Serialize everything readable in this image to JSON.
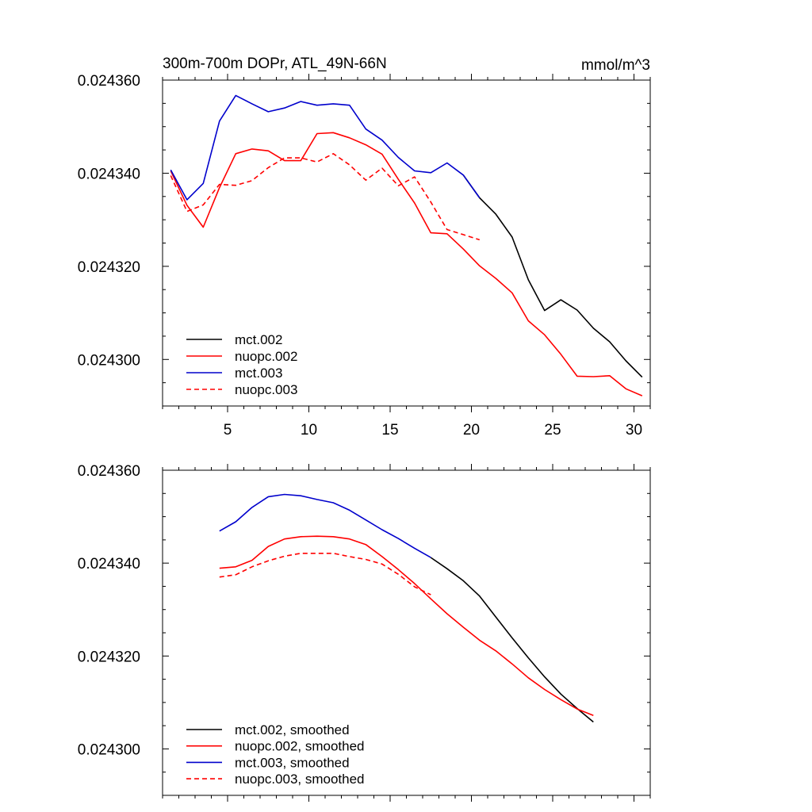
{
  "colors": {
    "mct_002": "#000000",
    "nuopc_002": "#ff0000",
    "mct_003": "#0000cc",
    "nuopc_003": "#ff0000"
  },
  "chart_data": [
    {
      "type": "line",
      "title_left": "300m-700m DOPr, ATL_49N-66N",
      "title_right": "mmol/m^3",
      "xlabel": "",
      "ylabel": "",
      "xlim": [
        1,
        31
      ],
      "ylim": [
        0.02429,
        0.02436
      ],
      "xticks": [
        5,
        10,
        15,
        20,
        25,
        30
      ],
      "xtick_labels": [
        "5",
        "10",
        "15",
        "20",
        "25",
        "30"
      ],
      "yticks": [
        0.0243,
        0.02432,
        0.02434,
        0.02436
      ],
      "ytick_labels": [
        "0.024300",
        "0.024320",
        "0.024340",
        "0.024360"
      ],
      "legend_position": "bottom-left",
      "series": [
        {
          "name": "mct.002",
          "color": "#000000",
          "dash": "solid",
          "x": [
            19.5,
            20.5,
            21.5,
            22.5,
            23.5,
            24.5,
            25.5,
            26.5,
            27.5,
            28.5,
            29.5,
            30.5
          ],
          "y": [
            0.0243396,
            0.0243347,
            0.0243312,
            0.0243263,
            0.0243171,
            0.0243105,
            0.0243128,
            0.0243106,
            0.0243067,
            0.0243038,
            0.0242997,
            0.0242962
          ]
        },
        {
          "name": "nuopc.002",
          "color": "#ff0000",
          "dash": "solid",
          "x": [
            1.5,
            2.5,
            3.5,
            4.5,
            5.5,
            6.5,
            7.5,
            8.5,
            9.5,
            10.5,
            11.5,
            12.5,
            13.5,
            14.5,
            15.5,
            16.5,
            17.5,
            18.5,
            19.5,
            20.5,
            21.5,
            22.5,
            23.5,
            24.5,
            25.5,
            26.5,
            27.5,
            28.5,
            29.5,
            30.5
          ],
          "y": [
            0.0243405,
            0.0243331,
            0.0243284,
            0.0243369,
            0.0243442,
            0.0243452,
            0.0243448,
            0.0243427,
            0.0243427,
            0.0243485,
            0.0243487,
            0.0243476,
            0.0243461,
            0.0243441,
            0.0243387,
            0.0243336,
            0.0243272,
            0.024327,
            0.0243237,
            0.0243201,
            0.0243174,
            0.0243143,
            0.0243083,
            0.0243053,
            0.0243011,
            0.0242964,
            0.0242963,
            0.0242965,
            0.0242937,
            0.0242922
          ]
        },
        {
          "name": "mct.003",
          "color": "#0000cc",
          "dash": "solid",
          "x": [
            1.5,
            2.5,
            3.5,
            4.5,
            5.5,
            6.5,
            7.5,
            8.5,
            9.5,
            10.5,
            11.5,
            12.5,
            13.5,
            14.5,
            15.5,
            16.5,
            17.5,
            18.5,
            19.5,
            20.5
          ],
          "y": [
            0.0243407,
            0.0243343,
            0.0243378,
            0.0243512,
            0.0243567,
            0.0243549,
            0.0243532,
            0.024354,
            0.0243554,
            0.0243546,
            0.0243549,
            0.0243546,
            0.0243495,
            0.0243471,
            0.0243434,
            0.0243405,
            0.0243401,
            0.0243422,
            0.0243396,
            0.0243347
          ]
        },
        {
          "name": "nuopc.003",
          "color": "#ff0000",
          "dash": "dashed",
          "x": [
            1.5,
            2.5,
            3.5,
            4.5,
            5.5,
            6.5,
            7.5,
            8.5,
            9.5,
            10.5,
            11.5,
            12.5,
            13.5,
            14.5,
            15.5,
            16.5,
            17.5,
            18.5,
            19.5,
            20.5
          ],
          "y": [
            0.0243395,
            0.0243318,
            0.0243332,
            0.0243376,
            0.0243374,
            0.0243384,
            0.0243412,
            0.0243433,
            0.0243433,
            0.0243424,
            0.0243442,
            0.0243418,
            0.0243385,
            0.0243411,
            0.0243373,
            0.0243392,
            0.0243338,
            0.0243279,
            0.0243268,
            0.0243257
          ]
        }
      ]
    },
    {
      "type": "line",
      "xlabel": "",
      "ylabel": "",
      "xlim": [
        1,
        31
      ],
      "ylim": [
        0.02429,
        0.02436
      ],
      "yticks": [
        0.0243,
        0.02432,
        0.02434,
        0.02436
      ],
      "ytick_labels": [
        "0.024300",
        "0.024320",
        "0.024340",
        "0.024360"
      ],
      "xticks": [
        5,
        10,
        15,
        20,
        25,
        30
      ],
      "xtick_labels": [],
      "legend_position": "bottom-left",
      "series": [
        {
          "name": "mct.002, smoothed",
          "color": "#000000",
          "dash": "solid",
          "x": [
            17.5,
            18.5,
            19.5,
            20.5,
            21.5,
            22.5,
            23.5,
            24.5,
            25.5,
            26.5,
            27.5
          ],
          "y": [
            0.0243412,
            0.0243388,
            0.0243362,
            0.0243329,
            0.0243284,
            0.0243239,
            0.0243196,
            0.0243155,
            0.0243118,
            0.0243087,
            0.0243058
          ]
        },
        {
          "name": "nuopc.002, smoothed",
          "color": "#ff0000",
          "dash": "solid",
          "x": [
            4.5,
            5.5,
            6.5,
            7.5,
            8.5,
            9.5,
            10.5,
            11.5,
            12.5,
            13.5,
            14.5,
            15.5,
            16.5,
            17.5,
            18.5,
            19.5,
            20.5,
            21.5,
            22.5,
            23.5,
            24.5,
            25.5,
            26.5,
            27.5
          ],
          "y": [
            0.0243389,
            0.0243392,
            0.0243406,
            0.0243436,
            0.0243452,
            0.0243457,
            0.0243458,
            0.0243457,
            0.0243452,
            0.024344,
            0.0243414,
            0.0243386,
            0.0243356,
            0.0243323,
            0.0243291,
            0.0243262,
            0.0243234,
            0.0243211,
            0.0243183,
            0.0243153,
            0.0243128,
            0.0243106,
            0.0243086,
            0.0243072
          ]
        },
        {
          "name": "mct.003, smoothed",
          "color": "#0000cc",
          "dash": "solid",
          "x": [
            4.5,
            5.5,
            6.5,
            7.5,
            8.5,
            9.5,
            10.5,
            11.5,
            12.5,
            13.5,
            14.5,
            15.5,
            16.5,
            17.5
          ],
          "y": [
            0.0243469,
            0.0243489,
            0.024352,
            0.0243543,
            0.0243548,
            0.0243545,
            0.0243537,
            0.024353,
            0.0243514,
            0.0243493,
            0.0243472,
            0.0243453,
            0.0243432,
            0.0243412
          ]
        },
        {
          "name": "nuopc.003, smoothed",
          "color": "#ff0000",
          "dash": "dashed",
          "x": [
            4.5,
            5.5,
            6.5,
            7.5,
            8.5,
            9.5,
            10.5,
            11.5,
            12.5,
            13.5,
            14.5,
            15.5,
            16.5,
            17.5
          ],
          "y": [
            0.024337,
            0.0243375,
            0.0243392,
            0.0243405,
            0.0243415,
            0.0243421,
            0.0243421,
            0.0243421,
            0.0243414,
            0.0243408,
            0.0243398,
            0.0243376,
            0.0243349,
            0.0243332
          ]
        }
      ]
    }
  ]
}
